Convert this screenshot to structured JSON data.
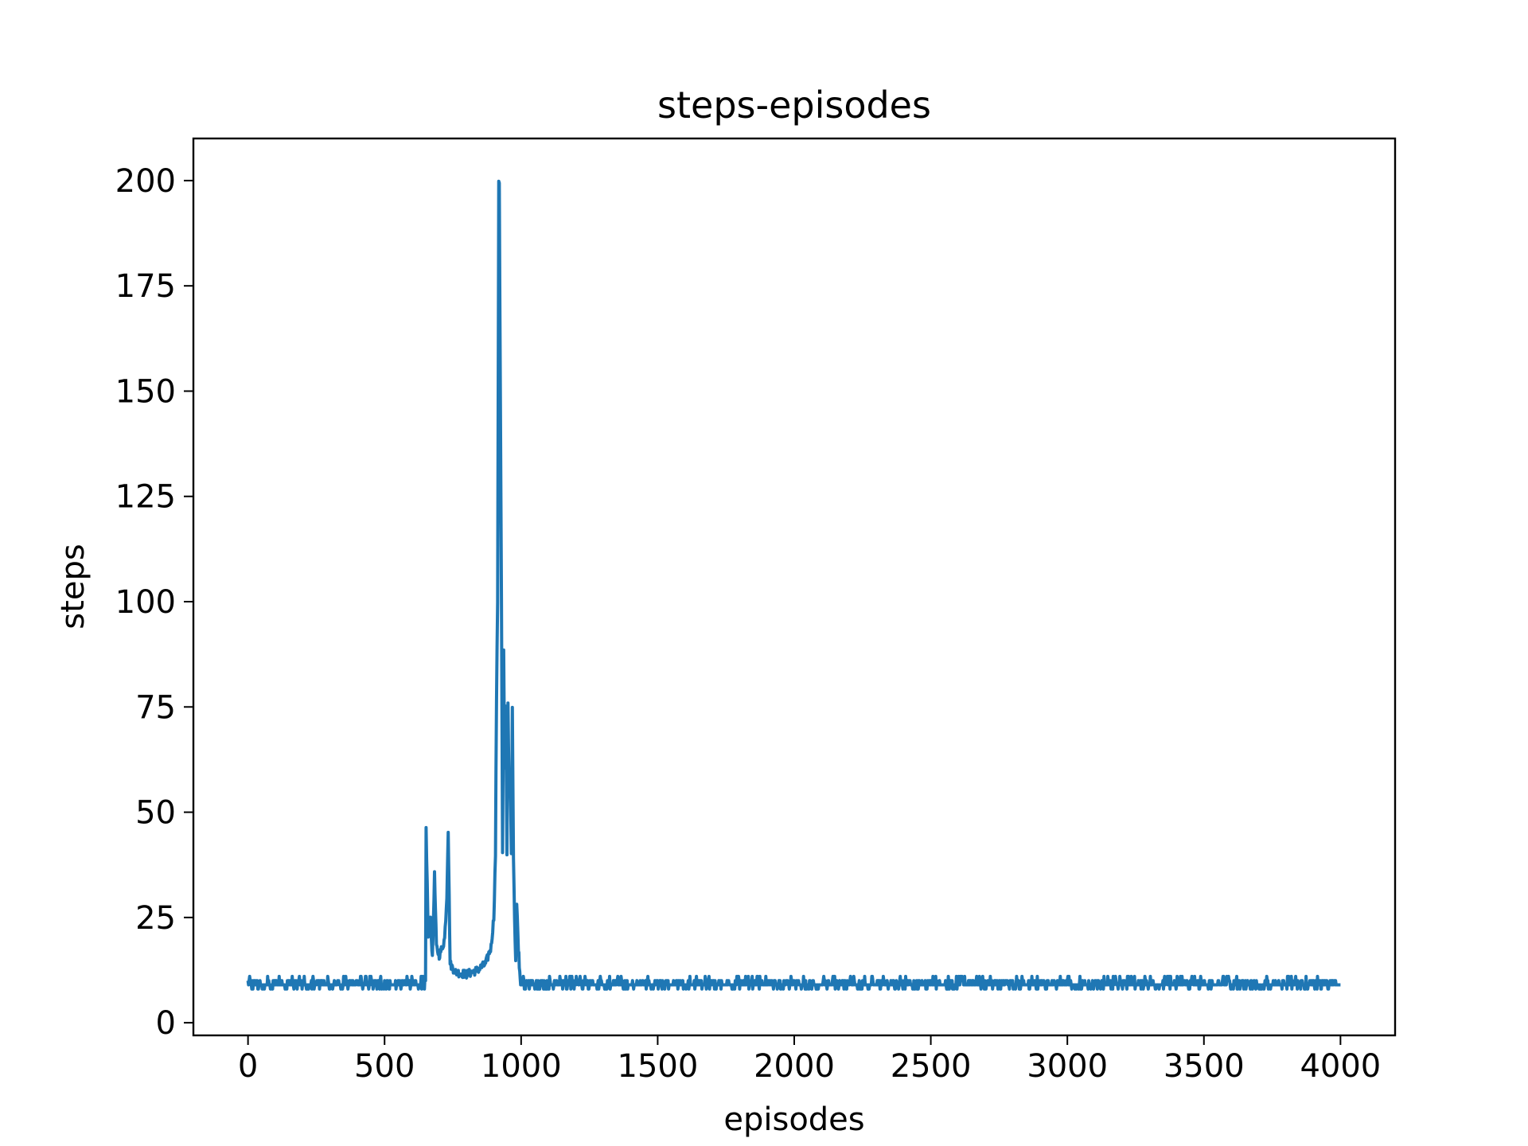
{
  "chart_data": {
    "type": "line",
    "title": "steps-episodes",
    "xlabel": "episodes",
    "ylabel": "steps",
    "xlim": [
      -200,
      4200
    ],
    "ylim": [
      -3,
      210
    ],
    "xticks": [
      0,
      500,
      1000,
      1500,
      2000,
      2500,
      3000,
      3500,
      4000
    ],
    "yticks": [
      0,
      25,
      50,
      75,
      100,
      125,
      150,
      175,
      200
    ],
    "grid": false,
    "legend": "none",
    "colors": {
      "series": "#1f77b4",
      "axes": "#000000",
      "background": "#ffffff"
    },
    "series": [
      {
        "x": [
          0,
          650,
          652,
          660,
          668,
          675,
          683,
          690,
          700,
          712,
          720,
          728,
          733,
          740,
          760,
          800,
          840,
          870,
          890,
          900,
          906,
          910,
          914,
          918,
          920,
          924,
          928,
          932,
          936,
          940,
          944,
          948,
          952,
          956,
          960,
          964,
          968,
          972,
          976,
          980,
          984,
          990,
          995,
          1000,
          1010,
          4000
        ],
        "y": [
          9.5,
          9.5,
          46,
          20,
          26,
          15,
          35,
          18,
          16,
          18,
          20,
          30,
          46,
          14,
          12,
          11.5,
          12.5,
          14,
          18,
          25,
          40,
          77,
          100,
          200,
          200,
          150,
          100,
          40,
          88,
          60,
          75,
          40,
          75,
          55,
          60,
          40,
          74,
          40,
          25,
          15,
          28,
          18,
          12,
          10,
          9.5,
          9.5
        ]
      }
    ],
    "noise": {
      "baseline_min": 8,
      "baseline_max": 11
    }
  }
}
